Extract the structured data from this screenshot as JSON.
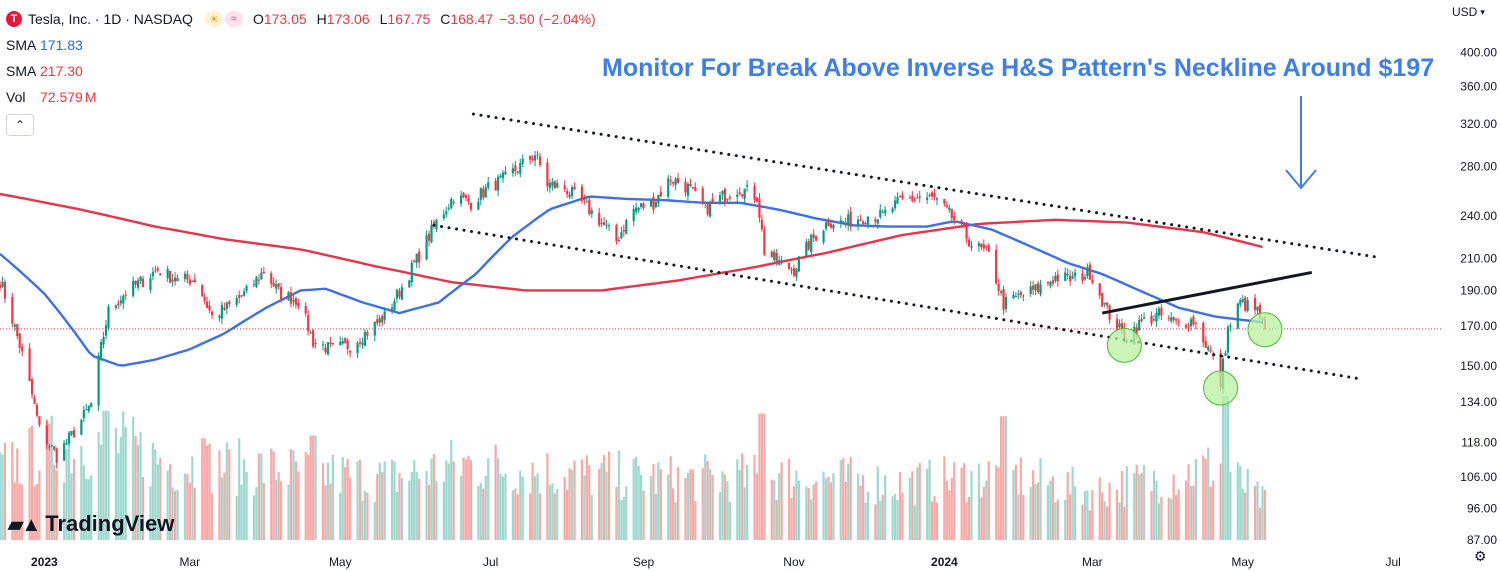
{
  "header": {
    "symbol_icon": "tesla-logo-icon",
    "title": "Tesla, Inc. · 1D · NASDAQ",
    "ohlc": [
      {
        "label": "O",
        "value": "173.05"
      },
      {
        "label": "H",
        "value": "173.06"
      },
      {
        "label": "L",
        "value": "167.75"
      },
      {
        "label": "C",
        "value": "168.47"
      }
    ],
    "change": "−3.50 (−2.04%)",
    "currency": "USD"
  },
  "indicators": [
    {
      "name": "SMA",
      "value": "171.83",
      "color": "#2962ff"
    },
    {
      "name": "SMA",
      "value": "217.30",
      "color": "#f23645"
    },
    {
      "name": "Vol",
      "value": "72.579",
      "unit": "M",
      "color": "#f23645"
    }
  ],
  "annotation": "Monitor For Break Above Inverse H&S Pattern's Neckline Around $197",
  "branding": "TradingView",
  "colors": {
    "up": "#089981",
    "down": "#f23645",
    "sma50": "#3f6fe5",
    "sma200": "#e8344a",
    "annotation": "#3f7fe5",
    "circle_fill": "#b9f2a0"
  },
  "chart_data": {
    "type": "candlestick",
    "y_scale": "log",
    "ylim": [
      87,
      420
    ],
    "y_ticks": [
      "400.00",
      "360.00",
      "320.00",
      "280.00",
      "240.00",
      "210.00",
      "190.00",
      "170.00",
      "150.00",
      "134.00",
      "118.00",
      "106.00",
      "96.00",
      "87.00"
    ],
    "x_range": [
      "2022-12-14",
      "2024-07-20"
    ],
    "x_ticks": [
      {
        "label": "2023",
        "date": "2023-01-01"
      },
      {
        "label": "Mar",
        "date": "2023-03-01"
      },
      {
        "label": "May",
        "date": "2023-05-01"
      },
      {
        "label": "Jul",
        "date": "2023-07-01"
      },
      {
        "label": "Sep",
        "date": "2023-09-01"
      },
      {
        "label": "Nov",
        "date": "2023-11-01"
      },
      {
        "label": "2024",
        "date": "2024-01-01"
      },
      {
        "label": "Mar",
        "date": "2024-03-01"
      },
      {
        "label": "May",
        "date": "2024-05-01"
      },
      {
        "label": "Jul",
        "date": "2024-07-01"
      }
    ],
    "close_path": [
      [
        "2022-12-14",
        196
      ],
      [
        "2022-12-22",
        160
      ],
      [
        "2022-12-30",
        123
      ],
      [
        "2023-01-06",
        113
      ],
      [
        "2023-01-13",
        122
      ],
      [
        "2023-01-20",
        133
      ],
      [
        "2023-01-27",
        178
      ],
      [
        "2023-02-03",
        189
      ],
      [
        "2023-02-10",
        196
      ],
      [
        "2023-02-16",
        203
      ],
      [
        "2023-02-24",
        196
      ],
      [
        "2023-03-03",
        197
      ],
      [
        "2023-03-10",
        175
      ],
      [
        "2023-03-17",
        181
      ],
      [
        "2023-03-24",
        189
      ],
      [
        "2023-03-31",
        202
      ],
      [
        "2023-04-06",
        189
      ],
      [
        "2023-04-14",
        184
      ],
      [
        "2023-04-20",
        162
      ],
      [
        "2023-04-27",
        158
      ],
      [
        "2023-05-05",
        160
      ],
      [
        "2023-05-12",
        167
      ],
      [
        "2023-05-19",
        175
      ],
      [
        "2023-05-26",
        192
      ],
      [
        "2023-06-02",
        212
      ],
      [
        "2023-06-09",
        235
      ],
      [
        "2023-06-16",
        255
      ],
      [
        "2023-06-23",
        250
      ],
      [
        "2023-06-30",
        262
      ],
      [
        "2023-07-07",
        270
      ],
      [
        "2023-07-14",
        282
      ],
      [
        "2023-07-19",
        291
      ],
      [
        "2023-07-24",
        265
      ],
      [
        "2023-07-31",
        262
      ],
      [
        "2023-08-07",
        250
      ],
      [
        "2023-08-14",
        237
      ],
      [
        "2023-08-21",
        222
      ],
      [
        "2023-08-28",
        245
      ],
      [
        "2023-09-05",
        250
      ],
      [
        "2023-09-12",
        270
      ],
      [
        "2023-09-19",
        262
      ],
      [
        "2023-09-26",
        245
      ],
      [
        "2023-10-03",
        255
      ],
      [
        "2023-10-10",
        262
      ],
      [
        "2023-10-17",
        255
      ],
      [
        "2023-10-20",
        215
      ],
      [
        "2023-10-27",
        206
      ],
      [
        "2023-11-01",
        203
      ],
      [
        "2023-11-08",
        222
      ],
      [
        "2023-11-15",
        236
      ],
      [
        "2023-11-22",
        235
      ],
      [
        "2023-11-30",
        240
      ],
      [
        "2023-12-07",
        240
      ],
      [
        "2023-12-14",
        251
      ],
      [
        "2023-12-21",
        254
      ],
      [
        "2023-12-28",
        253
      ],
      [
        "2024-01-05",
        237
      ],
      [
        "2024-01-12",
        220
      ],
      [
        "2024-01-19",
        212
      ],
      [
        "2024-01-25",
        182
      ],
      [
        "2024-02-01",
        187
      ],
      [
        "2024-02-08",
        191
      ],
      [
        "2024-02-15",
        198
      ],
      [
        "2024-02-22",
        197
      ],
      [
        "2024-02-29",
        201
      ],
      [
        "2024-03-07",
        178
      ],
      [
        "2024-03-14",
        164
      ],
      [
        "2024-03-21",
        172
      ],
      [
        "2024-03-28",
        176
      ],
      [
        "2024-04-04",
        171
      ],
      [
        "2024-04-11",
        173
      ],
      [
        "2024-04-18",
        156
      ],
      [
        "2024-04-22",
        142
      ],
      [
        "2024-04-25",
        168
      ],
      [
        "2024-04-30",
        183
      ],
      [
        "2024-05-07",
        178
      ],
      [
        "2024-05-10",
        168
      ]
    ],
    "sma50_path": [
      [
        "2022-12-14",
        213
      ],
      [
        "2023-01-01",
        188
      ],
      [
        "2023-01-20",
        155
      ],
      [
        "2023-02-01",
        150
      ],
      [
        "2023-02-15",
        153
      ],
      [
        "2023-03-01",
        158
      ],
      [
        "2023-03-15",
        166
      ],
      [
        "2023-04-01",
        180
      ],
      [
        "2023-04-15",
        190
      ],
      [
        "2023-04-25",
        191
      ],
      [
        "2023-05-10",
        183
      ],
      [
        "2023-05-25",
        177
      ],
      [
        "2023-06-10",
        183
      ],
      [
        "2023-06-25",
        200
      ],
      [
        "2023-07-10",
        225
      ],
      [
        "2023-07-25",
        245
      ],
      [
        "2023-08-10",
        255
      ],
      [
        "2023-08-25",
        253
      ],
      [
        "2023-09-10",
        252
      ],
      [
        "2023-09-25",
        250
      ],
      [
        "2023-10-10",
        250
      ],
      [
        "2023-10-25",
        245
      ],
      [
        "2023-11-10",
        238
      ],
      [
        "2023-11-25",
        233
      ],
      [
        "2023-12-10",
        232
      ],
      [
        "2023-12-25",
        232
      ],
      [
        "2024-01-05",
        236
      ],
      [
        "2024-01-20",
        230
      ],
      [
        "2024-02-05",
        218
      ],
      [
        "2024-02-20",
        207
      ],
      [
        "2024-03-05",
        200
      ],
      [
        "2024-03-20",
        190
      ],
      [
        "2024-04-05",
        180
      ],
      [
        "2024-04-20",
        175
      ],
      [
        "2024-05-10",
        171.83
      ]
    ],
    "sma200_path": [
      [
        "2022-12-14",
        257
      ],
      [
        "2023-01-15",
        245
      ],
      [
        "2023-02-15",
        232
      ],
      [
        "2023-03-15",
        223
      ],
      [
        "2023-04-15",
        216
      ],
      [
        "2023-05-15",
        205
      ],
      [
        "2023-06-15",
        195
      ],
      [
        "2023-07-15",
        190
      ],
      [
        "2023-08-15",
        190
      ],
      [
        "2023-09-15",
        196
      ],
      [
        "2023-10-15",
        204
      ],
      [
        "2023-11-15",
        214
      ],
      [
        "2023-12-15",
        226
      ],
      [
        "2024-01-15",
        234
      ],
      [
        "2024-02-15",
        237
      ],
      [
        "2024-03-15",
        235
      ],
      [
        "2024-04-15",
        228
      ],
      [
        "2024-05-10",
        217.3
      ]
    ],
    "volume_path": [
      [
        "2022-12-14",
        140
      ],
      [
        "2023-01-05",
        180
      ],
      [
        "2023-01-27",
        195
      ],
      [
        "2023-02-20",
        150
      ],
      [
        "2023-04-01",
        140
      ],
      [
        "2023-05-20",
        120
      ],
      [
        "2023-06-20",
        150
      ],
      [
        "2023-08-01",
        130
      ],
      [
        "2023-09-15",
        120
      ],
      [
        "2023-11-01",
        125
      ],
      [
        "2023-12-15",
        110
      ],
      [
        "2024-01-25",
        130
      ],
      [
        "2024-03-01",
        95
      ],
      [
        "2024-04-22",
        145
      ],
      [
        "2024-05-10",
        73
      ]
    ],
    "volume_spikes": [
      {
        "date": "2023-01-26",
        "value": 235
      },
      {
        "date": "2023-03-06",
        "value": 185
      },
      {
        "date": "2023-04-20",
        "value": 190
      },
      {
        "date": "2023-10-19",
        "value": 230
      },
      {
        "date": "2024-01-25",
        "value": 225
      },
      {
        "date": "2024-04-24",
        "value": 262
      }
    ],
    "current_price": 168.47,
    "trendlines": [
      {
        "name": "upper-channel",
        "style": "dotted",
        "from": [
          "2023-06-24",
          330
        ],
        "to": [
          "2024-06-24",
          211
        ]
      },
      {
        "name": "lower-channel",
        "style": "dotted",
        "from": [
          "2023-06-08",
          233
        ],
        "to": [
          "2024-06-18",
          144
        ]
      },
      {
        "name": "neckline",
        "style": "solid",
        "from": [
          "2024-03-05",
          177
        ],
        "to": [
          "2024-05-29",
          201
        ]
      }
    ],
    "highlight_points": [
      {
        "name": "left-shoulder",
        "date": "2024-03-14",
        "value": 160
      },
      {
        "name": "head",
        "date": "2024-04-22",
        "value": 140
      },
      {
        "name": "right-shoulder",
        "date": "2024-05-10",
        "value": 168
      }
    ]
  }
}
